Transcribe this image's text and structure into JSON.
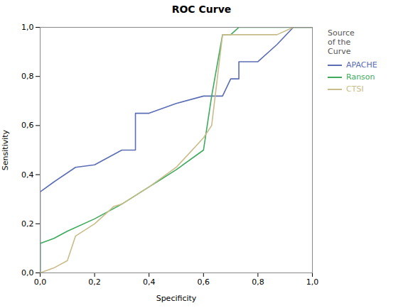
{
  "chart_data": {
    "type": "line",
    "title": "ROC Curve",
    "xlabel": "Specificity",
    "ylabel": "Sensitivity",
    "legend_title": "Source\nof the\nCurve",
    "legend": "right",
    "grid": false,
    "xlim": [
      0.0,
      1.0
    ],
    "ylim": [
      0.0,
      1.0
    ],
    "xticks": [
      {
        "value": 0.0,
        "label": "0,0"
      },
      {
        "value": 0.2,
        "label": "0,2"
      },
      {
        "value": 0.4,
        "label": "0,4"
      },
      {
        "value": 0.6,
        "label": "0,6"
      },
      {
        "value": 0.8,
        "label": "0,8"
      },
      {
        "value": 1.0,
        "label": "1,0"
      }
    ],
    "yticks": [
      {
        "value": 0.0,
        "label": "0,0"
      },
      {
        "value": 0.2,
        "label": "0,2"
      },
      {
        "value": 0.4,
        "label": "0,4"
      },
      {
        "value": 0.6,
        "label": "0,6"
      },
      {
        "value": 0.8,
        "label": "0,8"
      },
      {
        "value": 1.0,
        "label": "1,0"
      }
    ],
    "series": [
      {
        "name": "APACHE",
        "color": "#5b6db5",
        "x": [
          0.0,
          0.0,
          0.05,
          0.13,
          0.2,
          0.3,
          0.35,
          0.35,
          0.4,
          0.5,
          0.6,
          0.63,
          0.67,
          0.7,
          0.73,
          0.73,
          0.8,
          0.87,
          0.93,
          1.0
        ],
        "values": [
          0.0,
          0.33,
          0.37,
          0.43,
          0.44,
          0.5,
          0.5,
          0.65,
          0.65,
          0.69,
          0.72,
          0.72,
          0.72,
          0.79,
          0.79,
          0.86,
          0.86,
          0.93,
          1.0,
          1.0
        ]
      },
      {
        "name": "Ranson",
        "color": "#3daa5c",
        "x": [
          0.0,
          0.0,
          0.05,
          0.1,
          0.2,
          0.3,
          0.4,
          0.5,
          0.6,
          0.63,
          0.67,
          0.7,
          0.73,
          0.8,
          0.87,
          0.93,
          1.0
        ],
        "values": [
          0.0,
          0.12,
          0.14,
          0.17,
          0.22,
          0.28,
          0.35,
          0.42,
          0.5,
          0.72,
          0.97,
          0.97,
          1.0,
          1.0,
          1.0,
          1.0,
          1.0
        ]
      },
      {
        "name": "CTSI",
        "color": "#c8bc8a",
        "x": [
          0.0,
          0.0,
          0.05,
          0.1,
          0.13,
          0.2,
          0.27,
          0.3,
          0.4,
          0.5,
          0.6,
          0.63,
          0.67,
          0.7,
          0.73,
          0.8,
          0.87,
          0.93,
          1.0
        ],
        "values": [
          0.0,
          0.0,
          0.02,
          0.05,
          0.15,
          0.2,
          0.27,
          0.28,
          0.35,
          0.43,
          0.55,
          0.6,
          0.97,
          0.97,
          0.97,
          0.97,
          0.97,
          1.0,
          1.0
        ]
      }
    ]
  }
}
